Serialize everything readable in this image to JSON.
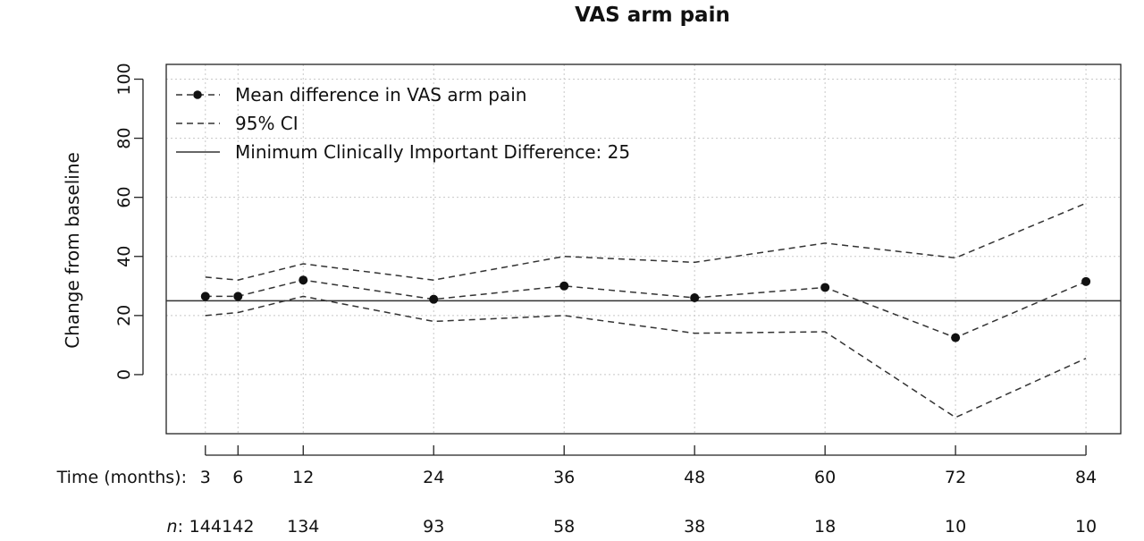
{
  "chart_data": {
    "type": "line",
    "title": "VAS arm pain",
    "ylabel": "Change from baseline",
    "xlabel_prefix": "Time (months):",
    "n_prefix_italic": "n",
    "n_prefix_suffix": ":",
    "x": [
      3,
      6,
      12,
      24,
      36,
      48,
      60,
      72,
      84
    ],
    "x_tick_labels": [
      "3",
      "6",
      "12",
      "24",
      "36",
      "48",
      "60",
      "72",
      "84"
    ],
    "n_values": [
      "144",
      "142",
      "134",
      "93",
      "58",
      "38",
      "18",
      "10",
      "10"
    ],
    "y_ticks": [
      0,
      20,
      40,
      60,
      80,
      100
    ],
    "y_tick_labels": [
      "0",
      "20",
      "40",
      "60",
      "80",
      "100"
    ],
    "xlim": [
      -0.6,
      87.2
    ],
    "ylim": [
      -20,
      105
    ],
    "grid": true,
    "legend_position": "top-left",
    "series": [
      {
        "name": "Mean difference in VAS arm pain",
        "values": [
          26.5,
          26.5,
          32,
          25.5,
          30,
          26,
          29.5,
          12.5,
          31.5
        ]
      },
      {
        "name": "95% CI",
        "upper": [
          33,
          32,
          37.5,
          32,
          40,
          38,
          44.5,
          39.5,
          58
        ],
        "lower": [
          20,
          21,
          26.5,
          18,
          20,
          14,
          14.5,
          -14.5,
          5.5
        ]
      }
    ],
    "reference_line": {
      "name": "Minimum Clinically Important Difference: 25",
      "y": 25
    },
    "colors": {
      "line": "#333333",
      "grid": "#c8c8c8",
      "axis": "#222222"
    }
  }
}
